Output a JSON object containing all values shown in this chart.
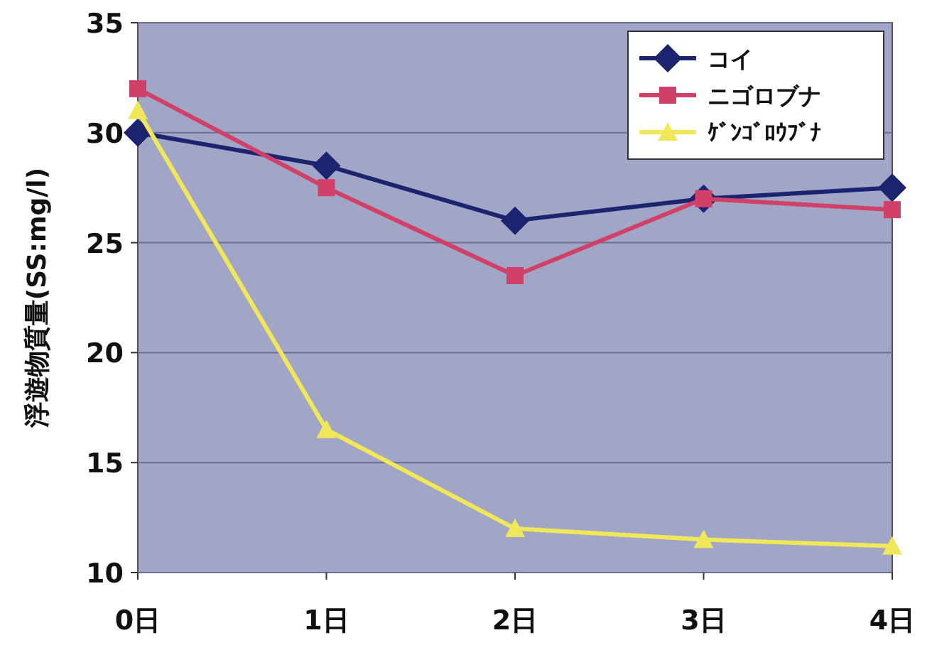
{
  "chart_data": {
    "type": "line",
    "ylabel": "浮遊物質量(SS:mg/l)",
    "categories": [
      "0日",
      "1日",
      "2日",
      "3日",
      "4日"
    ],
    "series": [
      {
        "name": "コイ",
        "color": "#1c2470",
        "marker": "diamond",
        "values": [
          30,
          28.5,
          26,
          27,
          27.5
        ]
      },
      {
        "name": "ニゴロブナ",
        "color": "#d04068",
        "marker": "square",
        "values": [
          32,
          27.5,
          23.5,
          27,
          26.5
        ]
      },
      {
        "name": "ｹﾞﾝｺﾞﾛｳﾌﾞﾅ",
        "color": "#f0e858",
        "marker": "triangle",
        "values": [
          31,
          16.5,
          12,
          11.5,
          11.2
        ]
      }
    ],
    "ylim": [
      10,
      35
    ],
    "yticks": [
      10,
      15,
      20,
      25,
      30,
      35
    ],
    "grid": "y",
    "legend": "top right"
  }
}
